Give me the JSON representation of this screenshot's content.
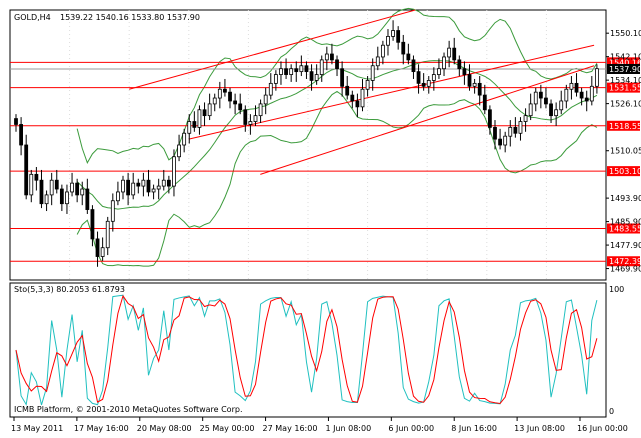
{
  "window": {
    "symbol_label": "GOLD,H4",
    "ohlc": "1539.22 1540.16 1533.80 1537.90",
    "footer": "ICMB Platform, © 2001-2010 MetaQuotes Software Corp."
  },
  "indicator": {
    "label": "Sto(5,3,3) 80.2053 61.8793",
    "max_label": "100",
    "min_label": "0"
  },
  "price_axis": {
    "ticks": [
      "1550.10",
      "1542.10",
      "1534.10",
      "1526.10",
      "1510.05",
      "1493.90",
      "1485.90",
      "1477.90",
      "1469.90"
    ],
    "line_labels": [
      "1540.16",
      "1537.90",
      "1531.55",
      "1518.55",
      "1503.10",
      "1483.55",
      "1472.39"
    ]
  },
  "time_axis": [
    "13 May 2011",
    "17 May 16:00",
    "20 May 08:00",
    "25 May 00:00",
    "27 May 16:00",
    "1 Jun 08:00",
    "6 Jun 00:00",
    "8 Jun 16:00",
    "13 Jun 08:00",
    "16 Jun 00:00"
  ],
  "colors": {
    "candle": "#000000",
    "bands": "#3c9b3c",
    "lines": "#ff0000",
    "stoch_main": "#20c0c0",
    "stoch_signal": "#ff0000"
  },
  "chart_data": {
    "type": "candlestick",
    "symbol": "GOLD",
    "timeframe": "H4",
    "price_range": [
      1466,
      1558
    ],
    "horizontal_levels": [
      1540.16,
      1537.9,
      1531.55,
      1518.55,
      1503.1,
      1483.55,
      1472.39
    ],
    "trend_lines": [
      {
        "p1": [
          0.2,
          1531
        ],
        "p2": [
          0.68,
          1558
        ]
      },
      {
        "p1": [
          0.3,
          1514
        ],
        "p2": [
          0.98,
          1546
        ]
      },
      {
        "p1": [
          0.42,
          1502
        ],
        "p2": [
          0.98,
          1539
        ]
      }
    ],
    "candles_close": [
      1519,
      1512,
      1495,
      1502,
      1500,
      1492,
      1495,
      1500,
      1497,
      1492,
      1496,
      1499,
      1495,
      1497,
      1490,
      1480,
      1474,
      1477,
      1486,
      1493,
      1496,
      1500,
      1495,
      1499,
      1498,
      1500,
      1496,
      1497,
      1498,
      1500,
      1498,
      1508,
      1512,
      1516,
      1520,
      1518,
      1524,
      1522,
      1526,
      1528,
      1531,
      1530,
      1527,
      1526,
      1524,
      1519,
      1520,
      1522,
      1526,
      1529,
      1533,
      1536,
      1538,
      1536,
      1538,
      1537,
      1539,
      1537,
      1534,
      1536,
      1541,
      1543,
      1541,
      1538,
      1532,
      1529,
      1527,
      1525,
      1531,
      1534,
      1539,
      1542,
      1546,
      1549,
      1551,
      1547,
      1543,
      1541,
      1537,
      1533,
      1532,
      1534,
      1536,
      1538,
      1542,
      1545,
      1541,
      1538,
      1536,
      1532,
      1533,
      1529,
      1524,
      1518,
      1514,
      1512,
      1515,
      1518,
      1516,
      1520,
      1522,
      1526,
      1530,
      1528,
      1526,
      1522,
      1524,
      1527,
      1531,
      1533,
      1530,
      1528,
      1527,
      1532,
      1538
    ],
    "stochastic": {
      "k_period": 5,
      "d_period": 3,
      "slowing": 3,
      "main": 80.2053,
      "signal": 61.8793
    }
  }
}
